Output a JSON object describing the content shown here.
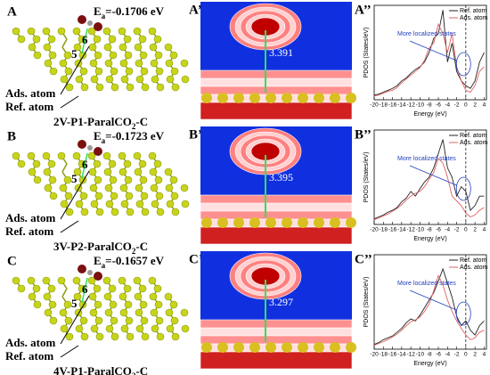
{
  "panels": [
    {
      "label": "A",
      "map_label": "A’",
      "pdos_label": "A’’",
      "energy": {
        "symbol": "E",
        "subscript": "a",
        "value": "=-0.1706 eV"
      },
      "site_a": "6",
      "site_b": "5",
      "ads_label": "Ads. atom",
      "ref_label": "Ref. atom",
      "structure": {
        "name": "2V-P1-ParalCO",
        "subscript": "2",
        "suffix": "-C"
      },
      "distance": "3.391"
    },
    {
      "label": "B",
      "map_label": "B’",
      "pdos_label": "B’’",
      "energy": {
        "symbol": "E",
        "subscript": "a",
        "value": "=-0.1723 eV"
      },
      "site_a": "6",
      "site_b": "5",
      "ads_label": "Ads. atom",
      "ref_label": "Ref. atom",
      "structure": {
        "name": "3V-P2-ParalCO",
        "subscript": "2",
        "suffix": "-C"
      },
      "distance": "3.395"
    },
    {
      "label": "C",
      "map_label": "C’",
      "pdos_label": "C’’",
      "energy": {
        "symbol": "E",
        "subscript": "a",
        "value": "=-0.1657 eV"
      },
      "site_a": "6",
      "site_b": "5",
      "ads_label": "Ads. atom",
      "ref_label": "Ref. atom",
      "structure": {
        "name": "4V-P1-ParalCO",
        "subscript": "2",
        "suffix": "-C"
      },
      "distance": "3.297"
    }
  ],
  "chart_data": [
    {
      "type": "line",
      "xlabel": "Energy (eV)",
      "ylabel": "PDOS (States/eV)",
      "annotation": "More localized states",
      "x": [
        -20,
        -19,
        -18,
        -17,
        -16,
        -15,
        -14,
        -13,
        -12,
        -11,
        -10,
        -9,
        -8,
        -7,
        -6,
        -5,
        -4,
        -3,
        -2,
        -1,
        0,
        1,
        2,
        3,
        4
      ],
      "xlim": [
        -20,
        4.5
      ],
      "xticks": [
        -20,
        -18,
        -16,
        -14,
        -12,
        -10,
        -8,
        -6,
        -4,
        -2,
        0,
        2,
        4
      ],
      "ylim": [
        0,
        10
      ],
      "series": [
        {
          "name": "Ref. atom",
          "color": "#222222",
          "values": [
            0.5,
            0.6,
            0.8,
            1,
            1.2,
            1.5,
            2,
            2.3,
            2.8,
            3.2,
            3.5,
            4,
            5,
            6.5,
            7,
            9.5,
            4,
            6,
            3,
            2,
            1.5,
            1.2,
            2,
            4,
            5
          ]
        },
        {
          "name": "Ads. atom",
          "color": "#e06060",
          "values": [
            0.4,
            0.5,
            0.7,
            0.9,
            1,
            1.3,
            1.8,
            2.2,
            2.6,
            3,
            3.4,
            4.2,
            5.5,
            6,
            8,
            7,
            5,
            7,
            3.5,
            2,
            1,
            0.8,
            1.5,
            3,
            3.5
          ]
        }
      ]
    },
    {
      "type": "line",
      "xlabel": "Energy (eV)",
      "ylabel": "PDOS (States/eV)",
      "annotation": "More localized states",
      "x": [
        -20,
        -19,
        -18,
        -17,
        -16,
        -15,
        -14,
        -13,
        -12,
        -11,
        -10,
        -9,
        -8,
        -7,
        -6,
        -5,
        -4,
        -3,
        -2,
        -1,
        0,
        1,
        2,
        3,
        4
      ],
      "xlim": [
        -20,
        4.5
      ],
      "xticks": [
        -20,
        -18,
        -16,
        -14,
        -12,
        -10,
        -8,
        -6,
        -4,
        -2,
        0,
        2,
        4
      ],
      "ylim": [
        0,
        10
      ],
      "series": [
        {
          "name": "Ref. atom",
          "color": "#222222",
          "values": [
            0.6,
            0.8,
            1,
            1.3,
            1.5,
            1.8,
            2.4,
            2.8,
            3.5,
            3,
            3.8,
            4.5,
            5,
            6,
            7.5,
            9,
            6,
            5,
            3,
            4,
            3.5,
            1.5,
            2,
            3,
            3
          ]
        },
        {
          "name": "Ads. atom",
          "color": "#e06060",
          "values": [
            0.5,
            0.7,
            0.9,
            1.1,
            1.4,
            1.7,
            2.1,
            2.6,
            3,
            3.3,
            3.5,
            4,
            4.8,
            5.5,
            7,
            6.5,
            5,
            3,
            2.5,
            2,
            1.2,
            0.8,
            1,
            1.5,
            1.8
          ]
        }
      ]
    },
    {
      "type": "line",
      "xlabel": "Energy (eV)",
      "ylabel": "PDOS (States/eV)",
      "annotation": "More localized states",
      "x": [
        -20,
        -19,
        -18,
        -17,
        -16,
        -15,
        -14,
        -13,
        -12,
        -11,
        -10,
        -9,
        -8,
        -7,
        -6,
        -5,
        -4,
        -3,
        -2,
        -1,
        0,
        1,
        2,
        3,
        4
      ],
      "xlim": [
        -20,
        4.5
      ],
      "xticks": [
        -20,
        -18,
        -16,
        -14,
        -12,
        -10,
        -8,
        -6,
        -4,
        -2,
        0,
        2,
        4
      ],
      "ylim": [
        0,
        10
      ],
      "series": [
        {
          "name": "Ref. atom",
          "color": "#222222",
          "values": [
            0.5,
            0.7,
            1,
            1.2,
            1.4,
            1.8,
            2.2,
            2.8,
            3.2,
            3,
            3.6,
            4.4,
            5.2,
            6,
            7.2,
            8.5,
            7,
            5.5,
            3.5,
            2.5,
            3,
            2,
            1.5,
            2.5,
            3
          ]
        },
        {
          "name": "Ads. atom",
          "color": "#e06060",
          "values": [
            0.4,
            0.6,
            0.8,
            1,
            1.3,
            1.6,
            2,
            2.5,
            2.9,
            3.1,
            3.4,
            4,
            4.8,
            6.2,
            7.8,
            6.8,
            5.2,
            4,
            3,
            2.2,
            1.5,
            1,
            1.2,
            1.8,
            2
          ]
        }
      ]
    }
  ]
}
